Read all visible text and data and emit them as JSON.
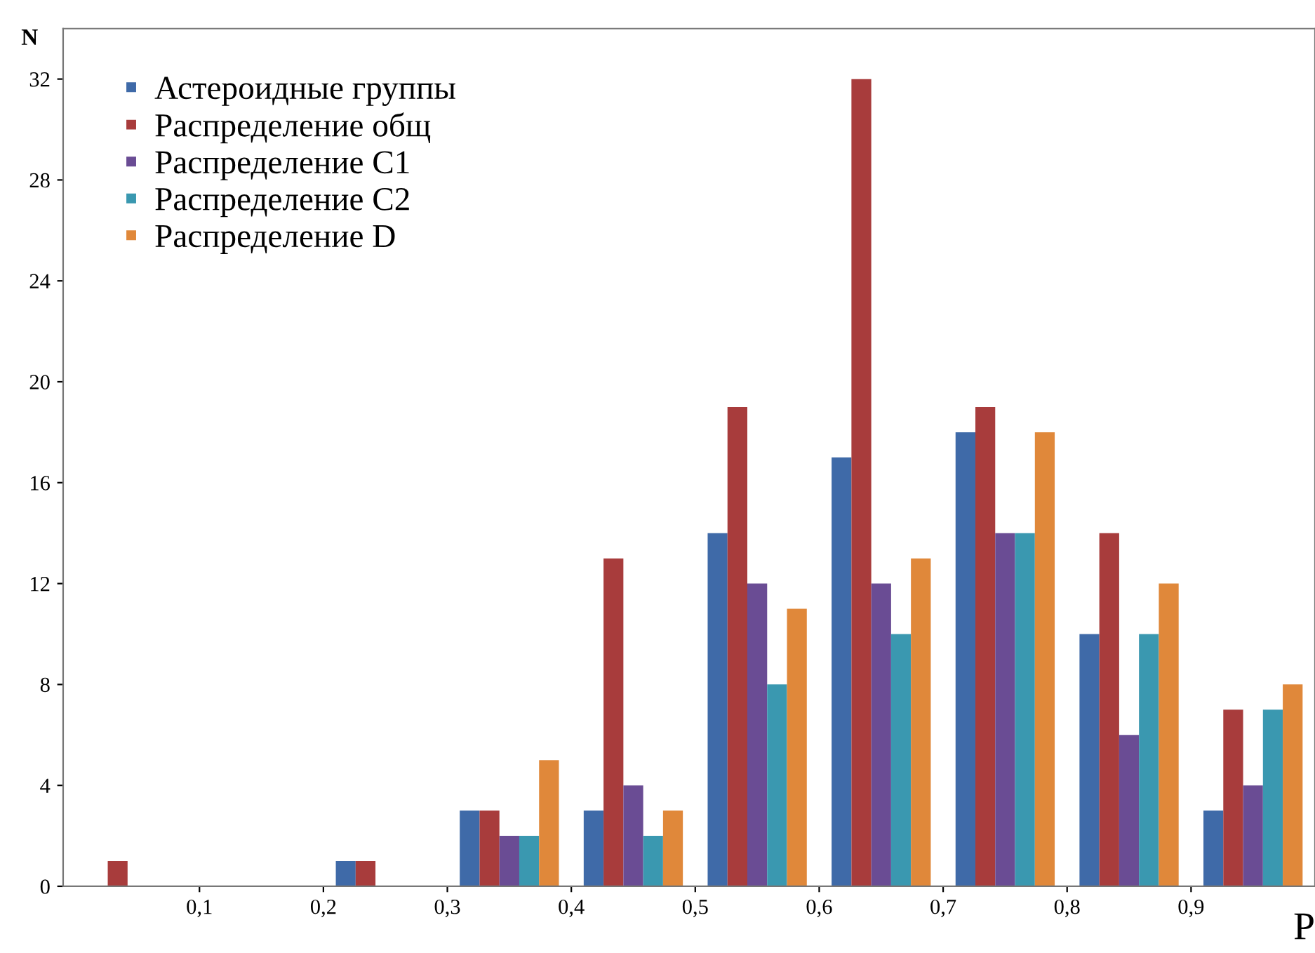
{
  "chart_data": {
    "type": "bar",
    "xlabel": "P",
    "ylabel": "N",
    "x": [
      0.05,
      0.15,
      0.25,
      0.35,
      0.45,
      0.55,
      0.65,
      0.75,
      0.85,
      0.95
    ],
    "series": [
      {
        "name": "Астероидные группы",
        "color": "#3f6aa8",
        "values": [
          0,
          0,
          1,
          3,
          3,
          14,
          17,
          18,
          10,
          3
        ]
      },
      {
        "name": "Распределение общ",
        "color": "#a83c3c",
        "values": [
          1,
          0,
          1,
          3,
          13,
          19,
          32,
          19,
          14,
          7
        ]
      },
      {
        "name": "Распределение C1",
        "color": "#6a4c94",
        "values": [
          0,
          0,
          0,
          2,
          4,
          12,
          12,
          14,
          6,
          4
        ]
      },
      {
        "name": "Распределение C2",
        "color": "#3a98b0",
        "values": [
          0,
          0,
          0,
          2,
          2,
          8,
          10,
          14,
          10,
          7
        ]
      },
      {
        "name": "Распределение D",
        "color": "#e0883a",
        "values": [
          0,
          0,
          0,
          5,
          3,
          11,
          13,
          18,
          12,
          8
        ]
      }
    ],
    "xlim": [
      -0.01,
      1.0
    ],
    "xticks": [
      {
        "value": 0.1,
        "label": "0,1"
      },
      {
        "value": 0.2,
        "label": "0,2"
      },
      {
        "value": 0.3,
        "label": "0,3"
      },
      {
        "value": 0.4,
        "label": "0,4"
      },
      {
        "value": 0.5,
        "label": "0,5"
      },
      {
        "value": 0.6,
        "label": "0,6"
      },
      {
        "value": 0.7,
        "label": "0,7"
      },
      {
        "value": 0.8,
        "label": "0,8"
      },
      {
        "value": 0.9,
        "label": "0,9"
      }
    ],
    "ylim": [
      0,
      34
    ],
    "yticks": [
      0,
      4,
      8,
      12,
      16,
      20,
      24,
      28,
      32
    ],
    "grid": false,
    "legend": "top left"
  }
}
